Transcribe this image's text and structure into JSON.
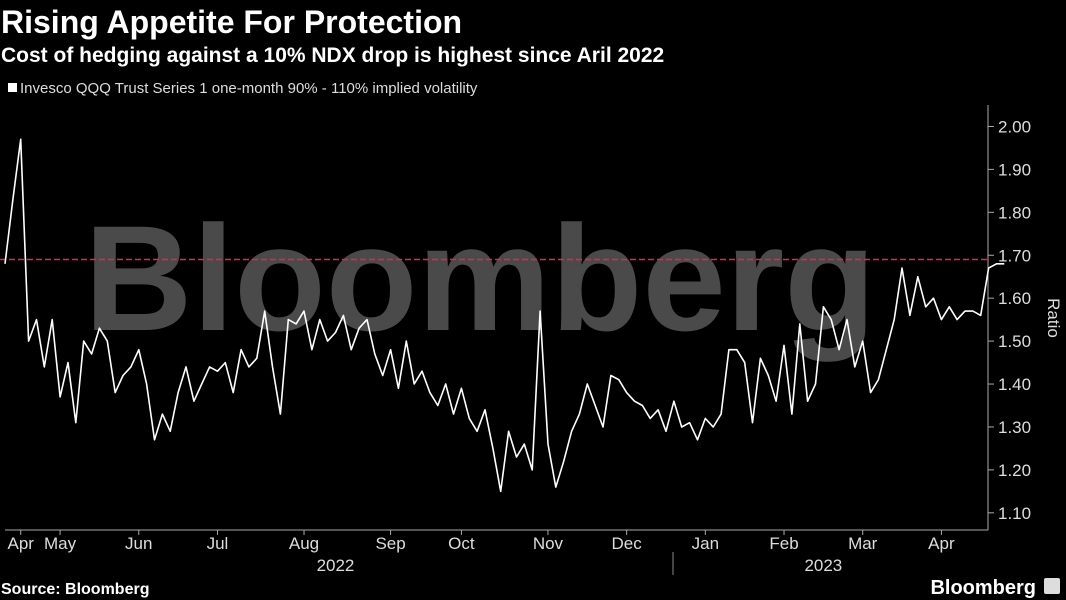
{
  "chart_data": {
    "type": "line",
    "title": "Rising Appetite For Protection",
    "subtitle": "Cost of hedging against a 10% NDX drop is highest since Aril 2022",
    "watermark": "Bloomberg",
    "source": "Source: Bloomberg",
    "brand": "Bloomberg",
    "y_axis_label": "Ratio",
    "series": [
      {
        "name": "Invesco QQQ Trust Series 1 one-month 90% - 110% implied volatility",
        "color": "#ffffff",
        "values": [
          1.68,
          1.83,
          1.97,
          1.5,
          1.55,
          1.44,
          1.55,
          1.37,
          1.45,
          1.31,
          1.5,
          1.47,
          1.53,
          1.5,
          1.38,
          1.42,
          1.44,
          1.48,
          1.4,
          1.27,
          1.33,
          1.29,
          1.38,
          1.44,
          1.36,
          1.4,
          1.44,
          1.43,
          1.45,
          1.38,
          1.48,
          1.44,
          1.46,
          1.57,
          1.44,
          1.33,
          1.55,
          1.54,
          1.57,
          1.48,
          1.55,
          1.5,
          1.52,
          1.56,
          1.48,
          1.53,
          1.55,
          1.47,
          1.42,
          1.48,
          1.39,
          1.5,
          1.4,
          1.43,
          1.38,
          1.35,
          1.4,
          1.33,
          1.39,
          1.32,
          1.29,
          1.34,
          1.25,
          1.15,
          1.29,
          1.23,
          1.26,
          1.2,
          1.57,
          1.26,
          1.16,
          1.22,
          1.29,
          1.33,
          1.4,
          1.35,
          1.3,
          1.42,
          1.41,
          1.38,
          1.36,
          1.35,
          1.32,
          1.34,
          1.29,
          1.36,
          1.3,
          1.31,
          1.27,
          1.32,
          1.3,
          1.33,
          1.48,
          1.48,
          1.45,
          1.31,
          1.46,
          1.42,
          1.36,
          1.49,
          1.33,
          1.54,
          1.36,
          1.4,
          1.58,
          1.55,
          1.48,
          1.55,
          1.44,
          1.5,
          1.38,
          1.41,
          1.48,
          1.55,
          1.67,
          1.56,
          1.65,
          1.58,
          1.6,
          1.55,
          1.58,
          1.55,
          1.57,
          1.57,
          1.56,
          1.67,
          1.68,
          1.68
        ]
      }
    ],
    "reference_line": {
      "value": 1.69,
      "color": "#e0284a"
    },
    "xlim": [
      0,
      122
    ],
    "xticks": [
      {
        "value": 2,
        "label": "Apr"
      },
      {
        "value": 7,
        "label": "May"
      },
      {
        "value": 17,
        "label": "Jun"
      },
      {
        "value": 27,
        "label": "Jul"
      },
      {
        "value": 38,
        "label": "Aug"
      },
      {
        "value": 49,
        "label": "Sep"
      },
      {
        "value": 58,
        "label": "Oct"
      },
      {
        "value": 69,
        "label": "Nov"
      },
      {
        "value": 79,
        "label": "Dec"
      },
      {
        "value": 89,
        "label": "Jan"
      },
      {
        "value": 99,
        "label": "Feb"
      },
      {
        "value": 109,
        "label": "Mar"
      },
      {
        "value": 119,
        "label": "Apr"
      }
    ],
    "year_labels": [
      {
        "value": 42,
        "label": "2022"
      },
      {
        "value": 104,
        "label": "2023"
      }
    ],
    "ylim": [
      1.06,
      2.05
    ],
    "yticks": [
      {
        "value": 1.1,
        "label": "1.10"
      },
      {
        "value": 1.2,
        "label": "1.20"
      },
      {
        "value": 1.3,
        "label": "1.30"
      },
      {
        "value": 1.4,
        "label": "1.40"
      },
      {
        "value": 1.5,
        "label": "1.50"
      },
      {
        "value": 1.6,
        "label": "1.60"
      },
      {
        "value": 1.7,
        "label": "1.70"
      },
      {
        "value": 1.8,
        "label": "1.80"
      },
      {
        "value": 1.9,
        "label": "1.90"
      },
      {
        "value": 2,
        "label": "2.00"
      }
    ]
  }
}
